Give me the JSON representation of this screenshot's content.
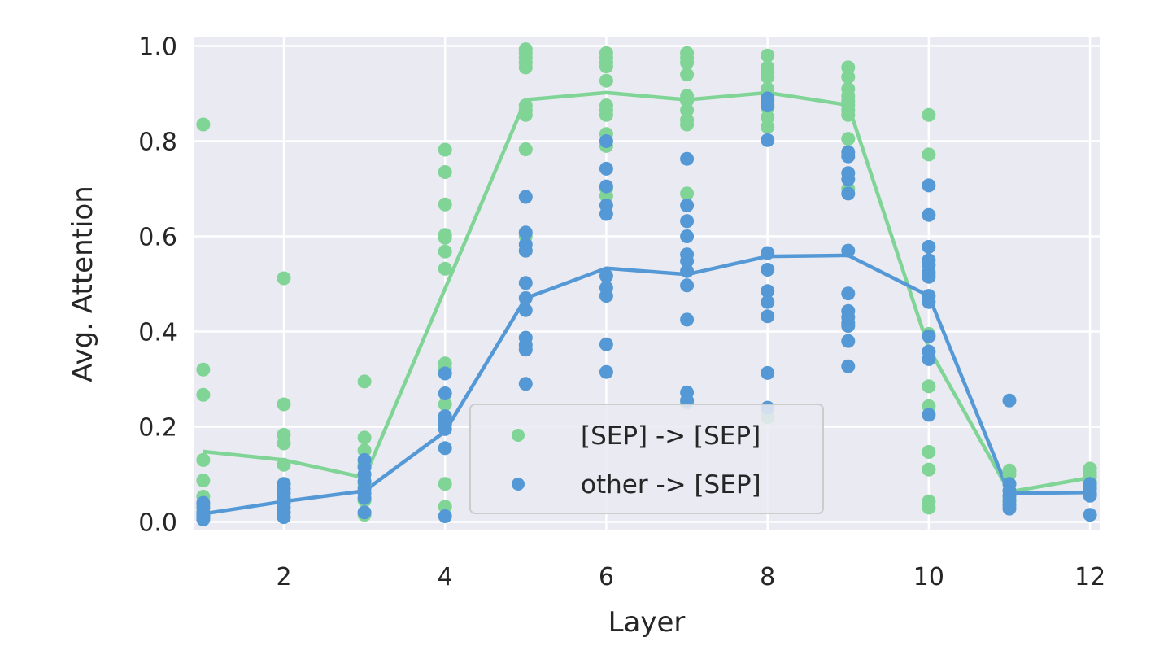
{
  "chart_data": {
    "type": "scatter",
    "xlabel": "Layer",
    "ylabel": "Avg. Attention",
    "xlim": [
      0.88,
      12.12
    ],
    "ylim": [
      -0.018,
      1.018
    ],
    "xticks": [
      2,
      4,
      6,
      8,
      10,
      12
    ],
    "yticks": [
      0.0,
      0.2,
      0.4,
      0.6,
      0.8,
      1.0
    ],
    "grid": true,
    "legend_position": "bottom-center",
    "series": [
      {
        "name": "[SEP] -> [SEP]",
        "color": "#7fd496",
        "points": [
          [
            1,
            0.835
          ],
          [
            1,
            0.32
          ],
          [
            1,
            0.267
          ],
          [
            1,
            0.13
          ],
          [
            1,
            0.087
          ],
          [
            1,
            0.053
          ],
          [
            1,
            0.035
          ],
          [
            1,
            0.02
          ],
          [
            1,
            0.01
          ],
          [
            2,
            0.512
          ],
          [
            2,
            0.247
          ],
          [
            2,
            0.183
          ],
          [
            2,
            0.165
          ],
          [
            2,
            0.12
          ],
          [
            2,
            0.08
          ],
          [
            2,
            0.04
          ],
          [
            2,
            0.02
          ],
          [
            3,
            0.295
          ],
          [
            3,
            0.177
          ],
          [
            3,
            0.15
          ],
          [
            3,
            0.12
          ],
          [
            3,
            0.08
          ],
          [
            3,
            0.045
          ],
          [
            3,
            0.015
          ],
          [
            4,
            0.782
          ],
          [
            4,
            0.735
          ],
          [
            4,
            0.667
          ],
          [
            4,
            0.603
          ],
          [
            4,
            0.597
          ],
          [
            4,
            0.568
          ],
          [
            4,
            0.532
          ],
          [
            4,
            0.333
          ],
          [
            4,
            0.322
          ],
          [
            4,
            0.247
          ],
          [
            4,
            0.08
          ],
          [
            4,
            0.032
          ],
          [
            5,
            0.993
          ],
          [
            5,
            0.985
          ],
          [
            5,
            0.975
          ],
          [
            5,
            0.965
          ],
          [
            5,
            0.955
          ],
          [
            5,
            0.875
          ],
          [
            5,
            0.865
          ],
          [
            5,
            0.855
          ],
          [
            5,
            0.783
          ],
          [
            5,
            0.6
          ],
          [
            5,
            0.57
          ],
          [
            6,
            0.985
          ],
          [
            6,
            0.975
          ],
          [
            6,
            0.965
          ],
          [
            6,
            0.957
          ],
          [
            6,
            0.927
          ],
          [
            6,
            0.875
          ],
          [
            6,
            0.865
          ],
          [
            6,
            0.855
          ],
          [
            6,
            0.815
          ],
          [
            6,
            0.79
          ],
          [
            6,
            0.7
          ],
          [
            6,
            0.685
          ],
          [
            7,
            0.985
          ],
          [
            7,
            0.975
          ],
          [
            7,
            0.965
          ],
          [
            7,
            0.94
          ],
          [
            7,
            0.895
          ],
          [
            7,
            0.885
          ],
          [
            7,
            0.865
          ],
          [
            7,
            0.845
          ],
          [
            7,
            0.835
          ],
          [
            7,
            0.69
          ],
          [
            7,
            0.25
          ],
          [
            8,
            0.98
          ],
          [
            8,
            0.955
          ],
          [
            8,
            0.945
          ],
          [
            8,
            0.935
          ],
          [
            8,
            0.91
          ],
          [
            8,
            0.9
          ],
          [
            8,
            0.87
          ],
          [
            8,
            0.85
          ],
          [
            8,
            0.83
          ],
          [
            8,
            0.22
          ],
          [
            9,
            0.955
          ],
          [
            9,
            0.935
          ],
          [
            9,
            0.91
          ],
          [
            9,
            0.895
          ],
          [
            9,
            0.885
          ],
          [
            9,
            0.875
          ],
          [
            9,
            0.865
          ],
          [
            9,
            0.855
          ],
          [
            9,
            0.805
          ],
          [
            9,
            0.7
          ],
          [
            10,
            0.855
          ],
          [
            10,
            0.772
          ],
          [
            10,
            0.52
          ],
          [
            10,
            0.395
          ],
          [
            10,
            0.285
          ],
          [
            10,
            0.243
          ],
          [
            10,
            0.147
          ],
          [
            10,
            0.11
          ],
          [
            10,
            0.043
          ],
          [
            10,
            0.03
          ],
          [
            11,
            0.108
          ],
          [
            11,
            0.1
          ],
          [
            11,
            0.08
          ],
          [
            11,
            0.065
          ],
          [
            11,
            0.05
          ],
          [
            11,
            0.04
          ],
          [
            12,
            0.112
          ],
          [
            12,
            0.103
          ],
          [
            12,
            0.095
          ],
          [
            12,
            0.085
          ],
          [
            12,
            0.075
          ]
        ],
        "line": [
          0.148,
          0.13,
          0.093,
          0.49,
          0.887,
          0.902,
          0.887,
          0.902,
          0.876,
          0.365,
          0.063,
          0.093
        ]
      },
      {
        "name": "other -> [SEP]",
        "color": "#5499d6",
        "points": [
          [
            1,
            0.04
          ],
          [
            1,
            0.03
          ],
          [
            1,
            0.02
          ],
          [
            1,
            0.015
          ],
          [
            1,
            0.01
          ],
          [
            1,
            0.005
          ],
          [
            2,
            0.08
          ],
          [
            2,
            0.07
          ],
          [
            2,
            0.06
          ],
          [
            2,
            0.05
          ],
          [
            2,
            0.04
          ],
          [
            2,
            0.03
          ],
          [
            2,
            0.02
          ],
          [
            2,
            0.01
          ],
          [
            3,
            0.13
          ],
          [
            3,
            0.115
          ],
          [
            3,
            0.1
          ],
          [
            3,
            0.085
          ],
          [
            3,
            0.07
          ],
          [
            3,
            0.06
          ],
          [
            3,
            0.05
          ],
          [
            3,
            0.02
          ],
          [
            4,
            0.312
          ],
          [
            4,
            0.27
          ],
          [
            4,
            0.222
          ],
          [
            4,
            0.215
          ],
          [
            4,
            0.205
          ],
          [
            4,
            0.195
          ],
          [
            4,
            0.155
          ],
          [
            4,
            0.012
          ],
          [
            5,
            0.683
          ],
          [
            5,
            0.608
          ],
          [
            5,
            0.583
          ],
          [
            5,
            0.57
          ],
          [
            5,
            0.502
          ],
          [
            5,
            0.47
          ],
          [
            5,
            0.445
          ],
          [
            5,
            0.387
          ],
          [
            5,
            0.372
          ],
          [
            5,
            0.362
          ],
          [
            5,
            0.29
          ],
          [
            6,
            0.8
          ],
          [
            6,
            0.742
          ],
          [
            6,
            0.705
          ],
          [
            6,
            0.665
          ],
          [
            6,
            0.647
          ],
          [
            6,
            0.517
          ],
          [
            6,
            0.492
          ],
          [
            6,
            0.475
          ],
          [
            6,
            0.373
          ],
          [
            6,
            0.315
          ],
          [
            7,
            0.763
          ],
          [
            7,
            0.665
          ],
          [
            7,
            0.632
          ],
          [
            7,
            0.6
          ],
          [
            7,
            0.562
          ],
          [
            7,
            0.548
          ],
          [
            7,
            0.527
          ],
          [
            7,
            0.497
          ],
          [
            7,
            0.425
          ],
          [
            7,
            0.272
          ],
          [
            7,
            0.255
          ],
          [
            8,
            0.89
          ],
          [
            8,
            0.885
          ],
          [
            8,
            0.875
          ],
          [
            8,
            0.802
          ],
          [
            8,
            0.565
          ],
          [
            8,
            0.53
          ],
          [
            8,
            0.485
          ],
          [
            8,
            0.462
          ],
          [
            8,
            0.432
          ],
          [
            8,
            0.313
          ],
          [
            8,
            0.24
          ],
          [
            9,
            0.777
          ],
          [
            9,
            0.768
          ],
          [
            9,
            0.733
          ],
          [
            9,
            0.72
          ],
          [
            9,
            0.69
          ],
          [
            9,
            0.57
          ],
          [
            9,
            0.48
          ],
          [
            9,
            0.443
          ],
          [
            9,
            0.43
          ],
          [
            9,
            0.418
          ],
          [
            9,
            0.412
          ],
          [
            9,
            0.38
          ],
          [
            9,
            0.327
          ],
          [
            10,
            0.707
          ],
          [
            10,
            0.645
          ],
          [
            10,
            0.578
          ],
          [
            10,
            0.55
          ],
          [
            10,
            0.54
          ],
          [
            10,
            0.525
          ],
          [
            10,
            0.515
          ],
          [
            10,
            0.475
          ],
          [
            10,
            0.462
          ],
          [
            10,
            0.39
          ],
          [
            10,
            0.358
          ],
          [
            10,
            0.342
          ],
          [
            10,
            0.225
          ],
          [
            11,
            0.255
          ],
          [
            11,
            0.08
          ],
          [
            11,
            0.065
          ],
          [
            11,
            0.055
          ],
          [
            11,
            0.045
          ],
          [
            11,
            0.035
          ],
          [
            11,
            0.028
          ],
          [
            12,
            0.08
          ],
          [
            12,
            0.07
          ],
          [
            12,
            0.06
          ],
          [
            12,
            0.055
          ],
          [
            12,
            0.015
          ]
        ],
        "line": [
          0.017,
          0.043,
          0.065,
          0.19,
          0.47,
          0.533,
          0.52,
          0.558,
          0.56,
          0.475,
          0.06,
          0.062
        ]
      }
    ]
  }
}
